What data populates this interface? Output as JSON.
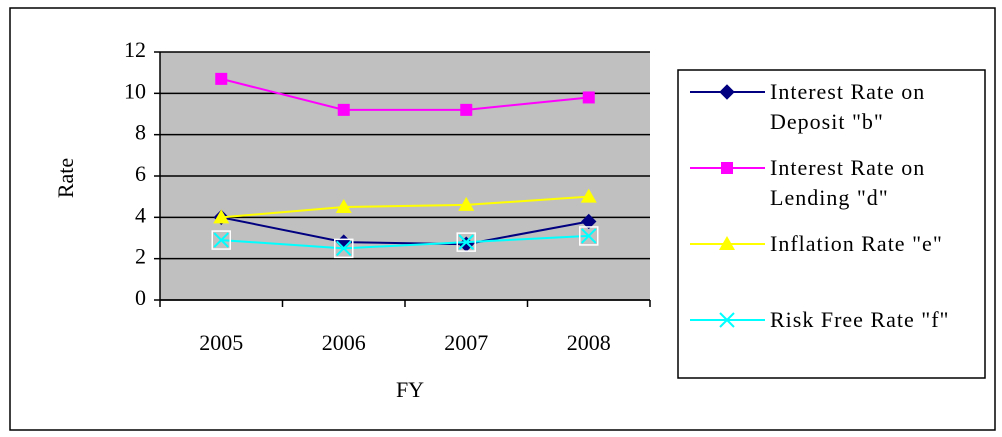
{
  "chart_data": {
    "type": "line",
    "x_label": "FY",
    "y_label": "Rate",
    "categories": [
      "2005",
      "2006",
      "2007",
      "2008"
    ],
    "series": [
      {
        "name": "Interest Rate on Deposit \"b\"",
        "color": "#000080",
        "marker": "diamond",
        "values": [
          4.0,
          2.8,
          2.7,
          3.8
        ]
      },
      {
        "name": "Interest Rate on Lending \"d\"",
        "color": "#ff00ff",
        "marker": "square",
        "values": [
          10.7,
          9.2,
          9.2,
          9.8
        ]
      },
      {
        "name": "Inflation Rate \"e\"",
        "color": "#ffff00",
        "marker": "triangle",
        "values": [
          4.0,
          4.5,
          4.6,
          5.0
        ]
      },
      {
        "name": "Risk Free Rate \"f\"",
        "color": "#00ffff",
        "marker": "x",
        "values": [
          2.9,
          2.5,
          2.8,
          3.1
        ]
      }
    ],
    "ylim": [
      0,
      12
    ],
    "yticks": [
      0,
      2,
      4,
      6,
      8,
      10,
      12
    ],
    "grid": true,
    "legend": "right"
  }
}
